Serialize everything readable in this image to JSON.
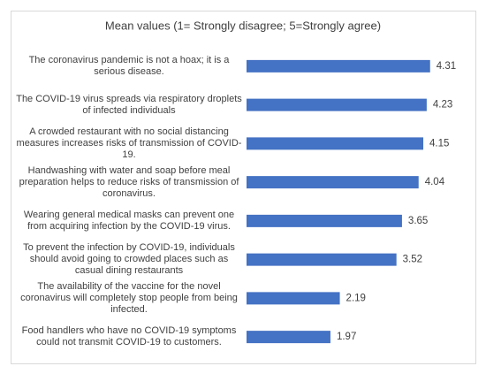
{
  "chart_data": {
    "type": "bar",
    "orientation": "horizontal",
    "title": "Mean values (1= Strongly disagree; 5=Strongly agree)",
    "categories": [
      "The coronavirus pandemic is not a hoax; it is a serious disease.",
      "The COVID-19 virus spreads via respiratory droplets of infected individuals",
      "A crowded restaurant with no social distancing measures increases risks of transmission of COVID-19.",
      "Handwashing with water and soap before meal preparation helps to reduce risks of transmission of coronavirus.",
      "Wearing general medical masks can prevent one from acquiring infection by the COVID-19 virus.",
      "To prevent the infection by COVID-19, individuals should avoid going to crowded places such as casual dining restaurants",
      "The availability of the vaccine for the novel coronavirus will completely stop people from being infected.",
      "Food handlers who have no COVID-19 symptoms could not transmit COVID-19 to customers."
    ],
    "values": [
      4.31,
      4.23,
      4.15,
      4.04,
      3.65,
      3.52,
      2.19,
      1.97
    ],
    "color": "#4472c4",
    "xlim": [
      0,
      5
    ]
  }
}
